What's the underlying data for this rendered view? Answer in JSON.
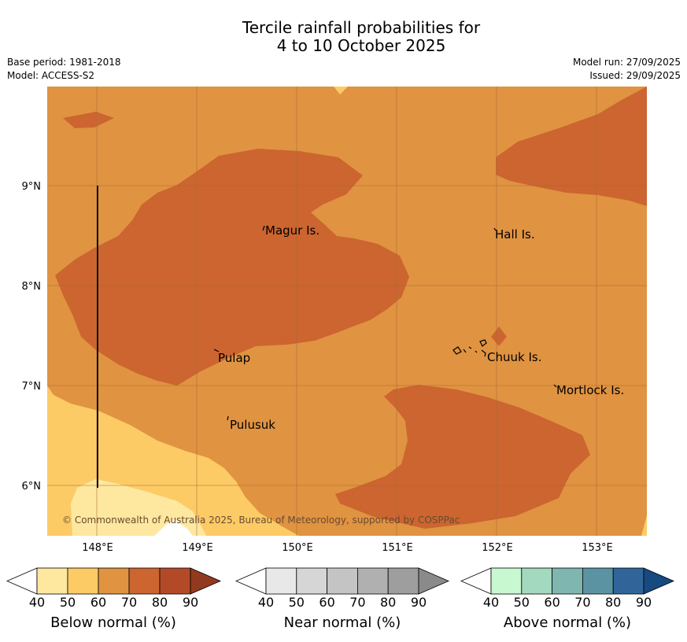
{
  "title": {
    "line1": "Tercile rainfall probabilities for",
    "line2": "4 to 10 October 2025"
  },
  "meta": {
    "base_period": "Base period: 1981-2018",
    "model": "Model: ACCESS-S2",
    "model_run": "Model run: 27/09/2025",
    "issued": "Issued: 29/09/2025"
  },
  "map": {
    "lon_labels": [
      "148°E",
      "149°E",
      "150°E",
      "151°E",
      "152°E",
      "153°E"
    ],
    "lat_labels": [
      "9°N",
      "8°N",
      "7°N",
      "6°N"
    ],
    "places": [
      "Magur Is.",
      "Hall Is.",
      "Pulap",
      "Chuuk Is.",
      "Mortlock Is.",
      "Pulusuk"
    ],
    "credit": "© Commonwealth of Australia 2025, Bureau of Meteorology, supported by COSPPac",
    "colors": {
      "below_50_60": "#fee8a0",
      "below_60_70": "#fdcb66",
      "below_70_80": "#e09341",
      "below_80_90": "#cc6530"
    }
  },
  "colorbars": [
    {
      "title": "Below normal (%)",
      "ticks": [
        "40",
        "50",
        "60",
        "70",
        "80",
        "90"
      ],
      "colors": [
        "#ffffff",
        "#fee8a0",
        "#fdcb66",
        "#e09341",
        "#cc6530",
        "#b24a28",
        "#93391f"
      ]
    },
    {
      "title": "Near normal (%)",
      "ticks": [
        "40",
        "50",
        "60",
        "70",
        "80",
        "90"
      ],
      "colors": [
        "#ffffff",
        "#e8e8e8",
        "#d6d6d6",
        "#c4c4c4",
        "#b0b0b0",
        "#9e9e9e",
        "#8a8a8a"
      ]
    },
    {
      "title": "Above normal (%)",
      "ticks": [
        "40",
        "50",
        "60",
        "70",
        "80",
        "90"
      ],
      "colors": [
        "#ffffff",
        "#c8f8d0",
        "#a3d9bf",
        "#7fb6b0",
        "#5c93a3",
        "#31659a",
        "#164a80"
      ]
    }
  ]
}
